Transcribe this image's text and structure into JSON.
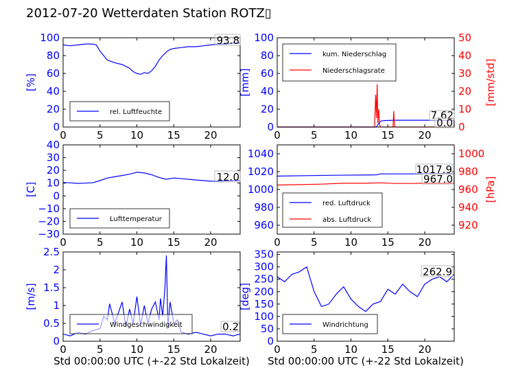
{
  "title": "2012-07-20 Wetterdaten Station ROTZ▯",
  "xlabel": "Std 00:00:00 UTC (+-22 Std Lokalzeit)",
  "colors": {
    "blue": "#0000ff",
    "red": "#ff0000",
    "light_blue": "#8080ff"
  },
  "chart_data": [
    {
      "type": "line",
      "ylabel": "[%]",
      "xlim": [
        0,
        24
      ],
      "ylim": [
        0,
        100
      ],
      "x_ticks": [
        0,
        5,
        10,
        15,
        20
      ],
      "y_ticks": [
        0,
        20,
        40,
        60,
        80,
        100
      ],
      "series": [
        {
          "name": "rel. Luftfeuchte",
          "color": "#0000ff",
          "x": [
            0,
            1,
            2,
            3,
            4,
            4.5,
            5,
            5.5,
            6,
            7,
            8,
            9,
            9.5,
            10,
            10.5,
            11,
            11.5,
            12,
            12.5,
            13,
            13.5,
            14,
            14.5,
            15,
            16,
            17,
            18,
            19,
            20,
            21,
            22,
            23,
            24
          ],
          "y": [
            92,
            91,
            92,
            93,
            93,
            92,
            85,
            80,
            75,
            72,
            70,
            66,
            62,
            60,
            59,
            61,
            60,
            63,
            68,
            75,
            80,
            84,
            87,
            88,
            89,
            90,
            90,
            91,
            92,
            93,
            93,
            94,
            94
          ]
        }
      ],
      "annotation": "93.8",
      "legend": "lower-left"
    },
    {
      "type": "line",
      "ylabel": "[mm]",
      "ylabel_right": "[mm/std]",
      "xlim": [
        0,
        24
      ],
      "ylim": [
        0,
        100
      ],
      "ylim_right": [
        0,
        50
      ],
      "x_ticks": [
        0,
        5,
        10,
        15,
        20
      ],
      "y_ticks": [
        0,
        20,
        40,
        60,
        80,
        100
      ],
      "y_ticks_right": [
        0,
        10,
        20,
        30,
        40,
        50
      ],
      "series": [
        {
          "name": "kum. Niederschlag",
          "color": "#0000ff",
          "x": [
            0,
            13.3,
            13.5,
            13.7,
            13.9,
            14.1,
            14.5,
            16,
            24
          ],
          "y": [
            0,
            0,
            0.5,
            3,
            5.5,
            6.8,
            7.2,
            7.6,
            7.62
          ]
        },
        {
          "name": "Niederschlagsrate",
          "color": "#ff0000",
          "axis": "right",
          "x": [
            0,
            13.2,
            13.35,
            13.45,
            13.55,
            13.65,
            13.75,
            13.9,
            14,
            15.7,
            15.8,
            15.9,
            16,
            24
          ],
          "y": [
            0,
            0,
            18,
            5,
            24,
            2,
            10,
            1,
            0,
            0,
            9,
            0.5,
            0,
            0
          ]
        }
      ],
      "annotations": [
        "7.62",
        "0.0"
      ],
      "legend": "upper-left"
    },
    {
      "type": "line",
      "ylabel": "[C]",
      "xlim": [
        0,
        24
      ],
      "ylim": [
        -30,
        40
      ],
      "x_ticks": [
        0,
        5,
        10,
        15,
        20
      ],
      "y_ticks": [
        -30,
        -20,
        -10,
        0,
        10,
        20,
        30,
        40
      ],
      "series": [
        {
          "name": "Lufttemperatur",
          "color": "#0000ff",
          "x": [
            0,
            1,
            2,
            3,
            4,
            5,
            6,
            7,
            8,
            9,
            10,
            11,
            12,
            13,
            14,
            15,
            16,
            17,
            18,
            19,
            20,
            21,
            22,
            23,
            24
          ],
          "y": [
            10.5,
            10.2,
            9.8,
            10,
            10.3,
            12,
            14,
            15,
            16,
            17,
            18.5,
            18,
            16.5,
            14.5,
            13,
            14,
            13.5,
            13,
            12.5,
            12,
            11.5,
            11.5,
            11.8,
            12,
            12
          ]
        }
      ],
      "annotation": "12.0",
      "legend": "lower-left"
    },
    {
      "type": "line",
      "ylabel_right": "[hPa]",
      "xlim": [
        0,
        24
      ],
      "ylim": [
        950,
        1050
      ],
      "ylim_right": [
        910,
        1010
      ],
      "x_ticks": [
        0,
        5,
        10,
        15,
        20
      ],
      "y_ticks": [
        960,
        980,
        1000,
        1020,
        1040
      ],
      "y_ticks_right": [
        920,
        940,
        960,
        980,
        1000
      ],
      "series": [
        {
          "name": "red. Luftdruck",
          "color": "#0000ff",
          "x": [
            0,
            4,
            8,
            12,
            13.5,
            14,
            18,
            20,
            24
          ],
          "y": [
            1015,
            1015.5,
            1016,
            1016.2,
            1016.5,
            1017.5,
            1017.5,
            1017.8,
            1017.9
          ]
        },
        {
          "name": "abs. Luftdruck",
          "color": "#ff0000",
          "axis": "right",
          "x": [
            0,
            3,
            6,
            9,
            12,
            14,
            16,
            18,
            20,
            24
          ],
          "y": [
            965,
            965.5,
            966,
            967,
            967,
            967.5,
            966.8,
            966.8,
            967,
            967
          ]
        }
      ],
      "annotations": [
        "1017.9",
        "967.0"
      ],
      "legend": "lower-left"
    },
    {
      "type": "line",
      "ylabel": "[m/s]",
      "xlim": [
        0,
        24
      ],
      "ylim": [
        0,
        2.5
      ],
      "x_ticks": [
        0,
        5,
        10,
        15,
        20
      ],
      "y_ticks": [
        0,
        0.5,
        1,
        1.5,
        2,
        2.5
      ],
      "series": [
        {
          "name": "Windgeschwindigkeit",
          "color": "#0000ff",
          "x": [
            0,
            1,
            2,
            3,
            4,
            5,
            5.5,
            6,
            6.3,
            7,
            7.5,
            8,
            8.5,
            9,
            9.5,
            10,
            10.5,
            11,
            11.5,
            12,
            12.5,
            13,
            13.2,
            13.5,
            13.8,
            14,
            14.2,
            14.5,
            15,
            15.5,
            16,
            17,
            18,
            19,
            20,
            21,
            22,
            23,
            24
          ],
          "y": [
            0.2,
            0.15,
            0.25,
            0.2,
            0.3,
            0.35,
            0.7,
            0.6,
            1.05,
            0.5,
            0.8,
            1.1,
            0.4,
            0.9,
            0.5,
            1.25,
            0.45,
            1.0,
            0.5,
            0.9,
            1.1,
            0.6,
            1.2,
            0.7,
            1.5,
            2.4,
            0.4,
            1.1,
            0.5,
            0.6,
            0.25,
            0.2,
            0.25,
            0.2,
            0.15,
            0.2,
            0.2,
            0.15,
            0.2
          ]
        }
      ],
      "annotation": "0.2",
      "legend": "lower-left"
    },
    {
      "type": "line",
      "ylabel": "[deg]",
      "xlim": [
        0,
        24
      ],
      "ylim": [
        0,
        360
      ],
      "x_ticks": [
        0,
        5,
        10,
        15,
        20
      ],
      "y_ticks": [
        0,
        50,
        100,
        150,
        200,
        250,
        300,
        350
      ],
      "series": [
        {
          "name": "Windrichtung",
          "color": "#0000ff",
          "x": [
            0,
            1,
            2,
            3,
            4,
            5,
            6,
            7,
            8,
            9,
            10,
            11,
            12,
            13,
            14,
            15,
            16,
            17,
            18,
            19,
            20,
            21,
            22,
            23,
            24
          ],
          "y": [
            260,
            240,
            270,
            280,
            300,
            200,
            140,
            150,
            190,
            220,
            170,
            140,
            120,
            150,
            160,
            210,
            190,
            230,
            200,
            180,
            230,
            250,
            260,
            240,
            270
          ]
        }
      ],
      "annotation": "262.9",
      "legend": "lower-left"
    }
  ]
}
